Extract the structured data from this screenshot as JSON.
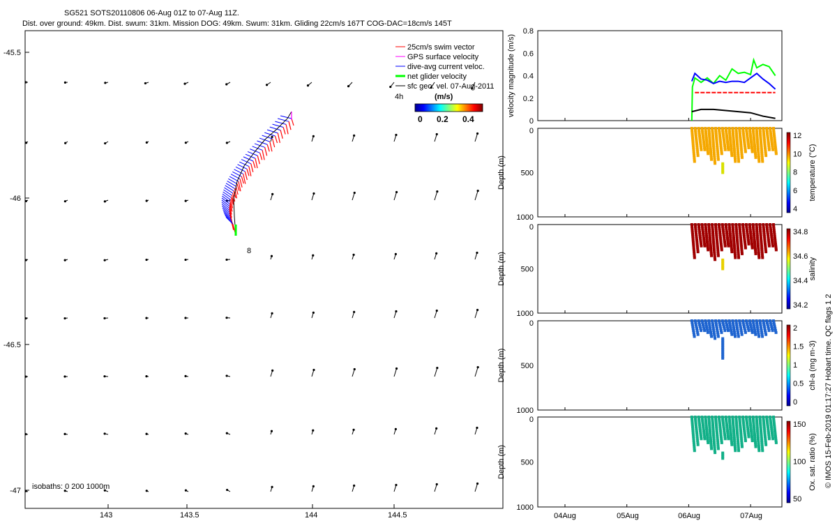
{
  "header": {
    "title_line1": "SG521 SOTS20110806 06-Aug 01Z to 07-Aug 11Z.",
    "title_line2": "Dist. over ground: 49km. Dist. swum: 31km. Mission DOG: 49km. Swum: 31km. Gliding 22cm/s 167T COG-DAC=18cm/s 145T"
  },
  "map": {
    "legend": [
      {
        "label": "25cm/s swim vector",
        "color": "#ff0000"
      },
      {
        "label": "GPS surface velocity",
        "color": "#ff00ff"
      },
      {
        "label": "dive-avg current veloc.",
        "color": "#0000ff"
      },
      {
        "label": "net glider velocity",
        "color": "#00ff00"
      },
      {
        "label": "sfc geo. vel. 07-Aug-2011",
        "color": "#000000"
      }
    ],
    "time_label": "4h",
    "colorbar_title": "(m/s)",
    "colorbar_ticks": [
      "0",
      "0.2",
      "0.4"
    ],
    "isobath_label": "isobaths: 0   200  1000m",
    "point_label": "8",
    "x_ticks": [
      "143",
      "143.5",
      "144",
      "144.5"
    ],
    "y_ticks": [
      "-45.5",
      "-46",
      "-46.5",
      "-47"
    ]
  },
  "chart_data": [
    {
      "type": "line",
      "ylabel": "velocity magnitude (m/s)",
      "ylim": [
        0,
        0.8
      ],
      "y_ticks": [
        "0.8",
        "0.6",
        "0.4",
        "0.2",
        "0"
      ],
      "x_ticks": [
        "04Aug",
        "05Aug",
        "06Aug",
        "07Aug"
      ],
      "series": [
        {
          "color": "#00ff00",
          "x": [
            6.05,
            6.06,
            6.1,
            6.2,
            6.3,
            6.4,
            6.5,
            6.6,
            6.7,
            6.8,
            6.9,
            7.0,
            7.05,
            7.1,
            7.2,
            7.3,
            7.4
          ],
          "y": [
            0.0,
            0.3,
            0.38,
            0.34,
            0.38,
            0.33,
            0.4,
            0.36,
            0.46,
            0.42,
            0.43,
            0.41,
            0.54,
            0.47,
            0.5,
            0.48,
            0.4
          ]
        },
        {
          "color": "#0000ff",
          "x": [
            6.05,
            6.1,
            6.2,
            6.3,
            6.4,
            6.5,
            6.6,
            6.7,
            6.8,
            6.9,
            7.0,
            7.1,
            7.2,
            7.3,
            7.4
          ],
          "y": [
            0.35,
            0.42,
            0.37,
            0.36,
            0.33,
            0.35,
            0.34,
            0.35,
            0.35,
            0.34,
            0.38,
            0.42,
            0.37,
            0.33,
            0.28
          ]
        },
        {
          "color": "#ff0000",
          "x": [
            6.1,
            7.4
          ],
          "y": [
            0.25,
            0.25
          ]
        },
        {
          "color": "#000000",
          "x": [
            6.05,
            6.2,
            6.4,
            6.6,
            6.8,
            7.0,
            7.2,
            7.4
          ],
          "y": [
            0.08,
            0.1,
            0.1,
            0.09,
            0.08,
            0.07,
            0.04,
            0.02
          ]
        }
      ]
    },
    {
      "type": "scatter",
      "ylabel": "Depth (m)",
      "ylim": [
        1000,
        0
      ],
      "y_ticks": [
        "0",
        "500",
        "1000"
      ],
      "cbar_label": "temperature (°C)",
      "cbar_ticks": [
        "12",
        "10",
        "8",
        "6",
        "4"
      ],
      "point_color": "#f5a800",
      "max_depth": 400,
      "deep_dip": 500
    },
    {
      "type": "scatter",
      "ylabel": "Depth (m)",
      "ylim": [
        1000,
        0
      ],
      "y_ticks": [
        "0",
        "500",
        "1000"
      ],
      "cbar_label": "salinity",
      "cbar_ticks": [
        "34.8",
        "34.6",
        "34.4",
        "34.2"
      ],
      "point_color": "#a00000",
      "max_depth": 400,
      "deep_dip": 500
    },
    {
      "type": "scatter",
      "ylabel": "Depth (m)",
      "ylim": [
        1000,
        0
      ],
      "y_ticks": [
        "0",
        "500",
        "1000"
      ],
      "cbar_label": "chl-a (mg m-3)",
      "cbar_ticks": [
        "2",
        "1.5",
        "1",
        "0.5",
        "0"
      ],
      "point_color": "#1e64d0",
      "max_depth": 200,
      "deep_dip": 430
    },
    {
      "type": "scatter",
      "ylabel": "Depth (m)",
      "ylim": [
        1000,
        0
      ],
      "y_ticks": [
        "0",
        "500",
        "1000"
      ],
      "cbar_label": "Ox. sat. ratio (%)",
      "cbar_ticks": [
        "150",
        "100",
        "50"
      ],
      "point_color": "#12b088",
      "max_depth": 400,
      "deep_dip": 470
    }
  ],
  "footer": {
    "vertical_note": "© IMOS 15-Feb-2019 01:17:27 Hobart time. QC flags 1  2"
  }
}
